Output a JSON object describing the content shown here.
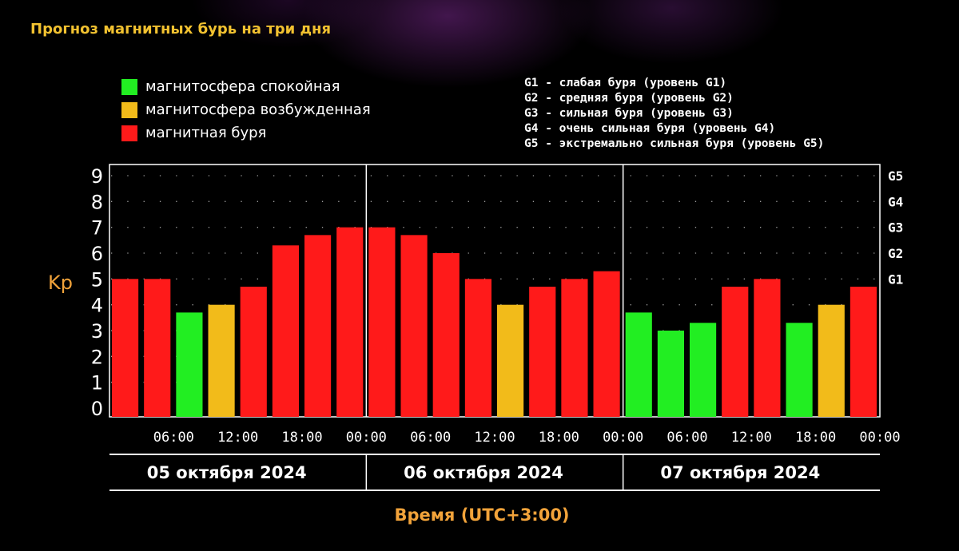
{
  "title": "Прогноз магнитных бурь на три дня",
  "legend": [
    {
      "label": "магнитосфера спокойная",
      "color": "#22ee22"
    },
    {
      "label": "магнитосфера возбужденная",
      "color": "#f2bb1a"
    },
    {
      "label": "магнитная буря",
      "color": "#ff1a1a"
    }
  ],
  "g_legend": [
    "G1 - слабая буря (уровень G1)",
    "G2 - средняя буря (уровень G2)",
    "G3 - сильная буря (уровень G3)",
    "G4 - очень сильная буря (уровень G4)",
    "G5 - экстремально сильная буря (уровень G5)"
  ],
  "chart_data": {
    "type": "bar",
    "title": "Прогноз магнитных бурь на три дня",
    "ylabel": "Kp",
    "xlabel": "Время (UTC+3:00)",
    "ylim": [
      0,
      9
    ],
    "yticks": [
      "0",
      "1",
      "2",
      "3",
      "4",
      "5",
      "6",
      "7",
      "8",
      "9"
    ],
    "right_ticks": [
      {
        "label": "G1",
        "kp": 5
      },
      {
        "label": "G2",
        "kp": 6
      },
      {
        "label": "G3",
        "kp": 7
      },
      {
        "label": "G4",
        "kp": 8
      },
      {
        "label": "G5",
        "kp": 9
      }
    ],
    "xtick_labels": [
      "06:00",
      "12:00",
      "18:00",
      "00:00",
      "06:00",
      "12:00",
      "18:00",
      "00:00",
      "06:00",
      "12:00",
      "18:00",
      "00:00"
    ],
    "days": [
      "05 октября 2024",
      "06 октября 2024",
      "07 октября 2024"
    ],
    "values": [
      5.0,
      5.0,
      3.7,
      4.0,
      4.7,
      6.3,
      6.7,
      7.0,
      7.0,
      6.7,
      6.0,
      5.0,
      4.0,
      4.7,
      5.0,
      5.3,
      3.7,
      3.0,
      3.3,
      4.7,
      5.0,
      3.3,
      4.0,
      4.7
    ],
    "levels": [
      "storm",
      "storm",
      "quiet",
      "active",
      "storm",
      "storm",
      "storm",
      "storm",
      "storm",
      "storm",
      "storm",
      "storm",
      "active",
      "storm",
      "storm",
      "storm",
      "quiet",
      "quiet",
      "quiet",
      "storm",
      "storm",
      "quiet",
      "active",
      "storm"
    ],
    "level_colors": {
      "quiet": "#22ee22",
      "active": "#f2bb1a",
      "storm": "#ff1a1a"
    },
    "grid": true
  },
  "colors": {
    "title": "#f2c230",
    "axis_title": "#f2a33a",
    "text": "#ffffff",
    "background": "#000000"
  }
}
